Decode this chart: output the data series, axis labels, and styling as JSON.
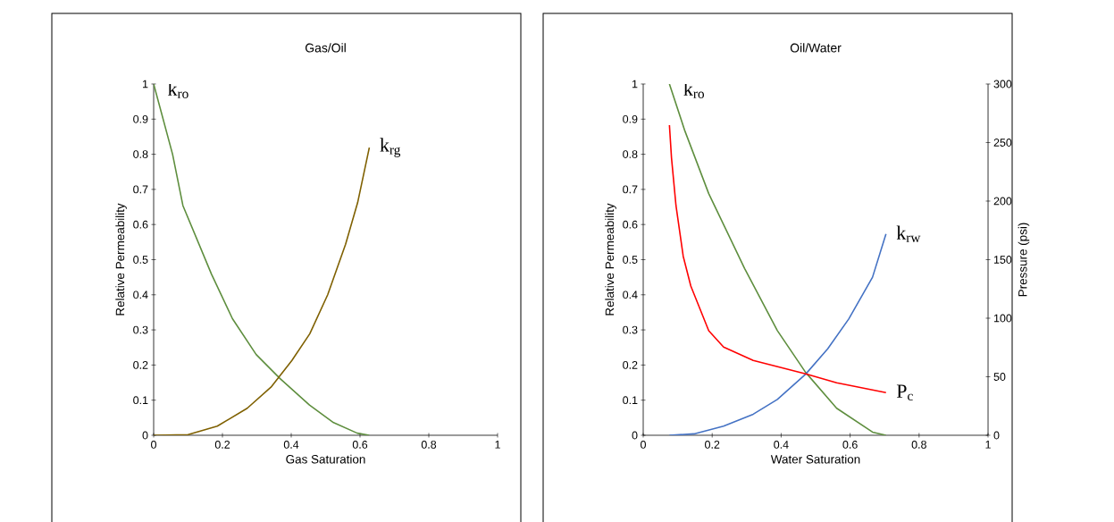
{
  "chart_data": [
    {
      "type": "line",
      "title": "Gas/Oil",
      "xlabel": "Gas Saturation",
      "ylabel": "Relative Permeability",
      "xlim": [
        0,
        1
      ],
      "xticks": [
        0,
        0.2,
        0.4,
        0.6,
        0.8,
        1
      ],
      "ylim": [
        0,
        1
      ],
      "yticks": [
        0,
        0.1,
        0.2,
        0.3,
        0.4,
        0.5,
        0.6,
        0.7,
        0.8,
        0.9,
        1
      ],
      "series": [
        {
          "name": "k$_{ro}$",
          "color": "#5e8e3e",
          "x": [
            0,
            0.055,
            0.085,
            0.168,
            0.229,
            0.298,
            0.367,
            0.453,
            0.523,
            0.592,
            0.627
          ],
          "values": [
            1.0,
            0.8,
            0.654,
            0.459,
            0.332,
            0.23,
            0.162,
            0.086,
            0.036,
            0.006,
            0
          ]
        },
        {
          "name": "k$_{rg}$",
          "color": "#7f6000",
          "x": [
            0,
            0.1,
            0.185,
            0.272,
            0.341,
            0.402,
            0.454,
            0.506,
            0.558,
            0.593,
            0.627
          ],
          "values": [
            0,
            0.002,
            0.026,
            0.077,
            0.137,
            0.213,
            0.289,
            0.4,
            0.544,
            0.662,
            0.819
          ]
        }
      ]
    },
    {
      "type": "line",
      "title": "Oil/Water",
      "xlabel": "Water Saturation",
      "ylabel": "Relative Permeability",
      "y2label": "Pressure (psi)",
      "xlim": [
        0,
        1
      ],
      "xticks": [
        0,
        0.2,
        0.4,
        0.6,
        0.8,
        1
      ],
      "ylim": [
        0,
        1
      ],
      "yticks": [
        0,
        0.1,
        0.2,
        0.3,
        0.4,
        0.5,
        0.6,
        0.7,
        0.8,
        0.9,
        1
      ],
      "y2lim": [
        0,
        300
      ],
      "y2ticks": [
        0,
        50,
        100,
        150,
        200,
        250,
        300
      ],
      "series": [
        {
          "name": "k$_{ro}$",
          "color": "#5e8e3e",
          "x": [
            0.076,
            0.121,
            0.19,
            0.294,
            0.389,
            0.471,
            0.561,
            0.665,
            0.704
          ],
          "values": [
            1.0,
            0.866,
            0.688,
            0.475,
            0.298,
            0.179,
            0.077,
            0.009,
            0
          ]
        },
        {
          "name": "k$_{rw}$",
          "color": "#4472c4",
          "x": [
            0.076,
            0.147,
            0.233,
            0.319,
            0.389,
            0.471,
            0.535,
            0.596,
            0.665,
            0.704
          ],
          "values": [
            0,
            0.004,
            0.026,
            0.06,
            0.102,
            0.174,
            0.246,
            0.331,
            0.45,
            0.573
          ]
        },
        {
          "name": "P$_{c}$",
          "color": "#ff0000",
          "axis": "y2",
          "x": [
            0.076,
            0.082,
            0.095,
            0.116,
            0.138,
            0.19,
            0.233,
            0.319,
            0.471,
            0.561,
            0.704
          ],
          "values": [
            264.9,
            236.9,
            196.2,
            152.9,
            127.5,
            89.3,
            75.3,
            63.9,
            52.4,
            44.8,
            36.4
          ]
        }
      ]
    }
  ]
}
